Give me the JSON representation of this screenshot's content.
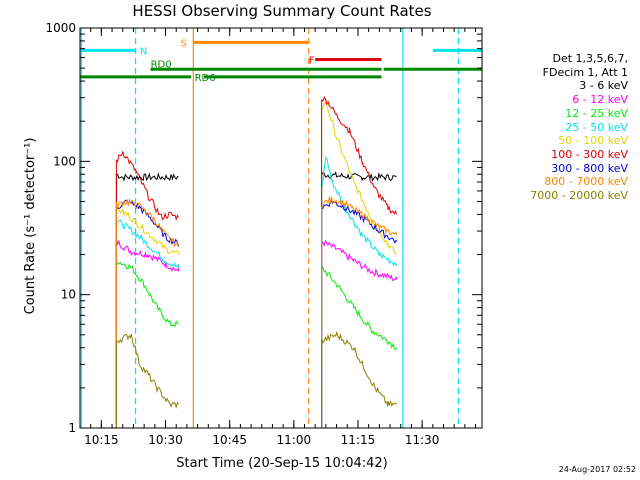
{
  "chart_data": {
    "type": "line",
    "title": "HESSI Observing Summary Count Rates",
    "xlabel": "Start Time (20-Sep-15 10:04:42)",
    "ylabel": "Count Rate (s⁻¹ detector⁻¹)",
    "ylim": [
      1,
      1000
    ],
    "yscale": "log",
    "xlim_minutes": [
      10.0,
      104.0
    ],
    "xticks": [
      {
        "label": "10:15",
        "min": 15
      },
      {
        "label": "10:30",
        "min": 30
      },
      {
        "label": "10:45",
        "min": 45
      },
      {
        "label": "11:00",
        "min": 60
      },
      {
        "label": "11:15",
        "min": 75
      },
      {
        "label": "11:30",
        "min": 90
      }
    ],
    "yticks": [
      {
        "label": "1",
        "value": 1
      },
      {
        "label": "10",
        "value": 10
      },
      {
        "label": "100",
        "value": 100
      },
      {
        "label": "1000",
        "value": 1000
      }
    ],
    "legend_header": [
      "Det 1,3,5,6,7,",
      "FDecim 1, Att 1"
    ],
    "legend_position": "right",
    "series": [
      {
        "name": "3 - 6 keV",
        "color": "#000000",
        "a": [
          [
            18.5,
            80
          ],
          [
            20,
            76
          ],
          [
            25,
            76
          ],
          [
            33,
            76
          ]
        ],
        "b": [
          [
            66.5,
            80
          ],
          [
            70,
            78
          ],
          [
            76,
            76
          ],
          [
            84,
            76
          ]
        ]
      },
      {
        "name": "6 - 12 keV",
        "color": "#ff00ff",
        "a": [
          [
            18.5,
            25
          ],
          [
            22,
            21
          ],
          [
            26,
            20
          ],
          [
            30,
            17
          ],
          [
            33,
            15
          ]
        ],
        "b": [
          [
            66.5,
            25
          ],
          [
            70,
            22
          ],
          [
            74,
            18
          ],
          [
            78,
            15
          ],
          [
            84,
            13
          ]
        ]
      },
      {
        "name": "12 - 25 keV",
        "color": "#00ee00",
        "a": [
          [
            18.5,
            18
          ],
          [
            22,
            16
          ],
          [
            25,
            12
          ],
          [
            28,
            8
          ],
          [
            31,
            6
          ],
          [
            33,
            6
          ]
        ],
        "b": [
          [
            66.5,
            16
          ],
          [
            70,
            12
          ],
          [
            74,
            8
          ],
          [
            78,
            5.5
          ],
          [
            82,
            4.5
          ],
          [
            84,
            4
          ]
        ]
      },
      {
        "name": "25 - 50 keV",
        "color": "#00e5ee",
        "a": [
          [
            18.5,
            36
          ],
          [
            21,
            32
          ],
          [
            24,
            27
          ],
          [
            27,
            22
          ],
          [
            30,
            18
          ],
          [
            33,
            16
          ]
        ],
        "b": [
          [
            66.5,
            60
          ],
          [
            67.5,
            110
          ],
          [
            69,
            70
          ],
          [
            72,
            45
          ],
          [
            76,
            28
          ],
          [
            80,
            20
          ],
          [
            84,
            17
          ]
        ]
      },
      {
        "name": "50 - 100 keV",
        "color": "#e5d400",
        "a": [
          [
            18.5,
            44
          ],
          [
            21,
            40
          ],
          [
            24,
            33
          ],
          [
            27,
            27
          ],
          [
            30,
            22
          ],
          [
            33,
            20
          ]
        ],
        "b": [
          [
            66.5,
            250
          ],
          [
            67.5,
            280
          ],
          [
            70,
            150
          ],
          [
            74,
            70
          ],
          [
            78,
            38
          ],
          [
            82,
            24
          ],
          [
            84,
            20
          ]
        ]
      },
      {
        "name": "100 - 300 keV",
        "color": "#e00000",
        "a": [
          [
            18.5,
            100
          ],
          [
            20,
            118
          ],
          [
            23,
            85
          ],
          [
            26,
            55
          ],
          [
            29,
            38
          ],
          [
            31,
            40
          ],
          [
            33,
            38
          ]
        ],
        "b": [
          [
            66.5,
            300
          ],
          [
            68,
            280
          ],
          [
            70,
            220
          ],
          [
            73,
            170
          ],
          [
            76,
            100
          ],
          [
            79,
            62
          ],
          [
            82,
            45
          ],
          [
            84,
            40
          ]
        ]
      },
      {
        "name": "300 - 800 keV",
        "color": "#0000dd",
        "a": [
          [
            18.5,
            45
          ],
          [
            21,
            50
          ],
          [
            24,
            45
          ],
          [
            27,
            36
          ],
          [
            30,
            27
          ],
          [
            33,
            24
          ]
        ],
        "b": [
          [
            66.5,
            45
          ],
          [
            69,
            50
          ],
          [
            72,
            45
          ],
          [
            76,
            38
          ],
          [
            80,
            30
          ],
          [
            84,
            25
          ]
        ]
      },
      {
        "name": "800 - 7000 keV",
        "color": "#ff8800",
        "a": [
          [
            18.5,
            47
          ],
          [
            21,
            50
          ],
          [
            24,
            46
          ],
          [
            27,
            38
          ],
          [
            30,
            28
          ],
          [
            33,
            23
          ]
        ],
        "b": [
          [
            66.5,
            48
          ],
          [
            69,
            52
          ],
          [
            72,
            48
          ],
          [
            76,
            40
          ],
          [
            80,
            32
          ],
          [
            84,
            28
          ]
        ]
      },
      {
        "name": "7000 - 20000 keV",
        "color": "#8b8000",
        "a": [
          [
            18.5,
            4.5
          ],
          [
            22,
            5
          ],
          [
            24,
            3
          ],
          [
            26,
            2.5
          ],
          [
            28,
            2
          ],
          [
            31,
            1.5
          ],
          [
            33,
            1.5
          ]
        ],
        "b": [
          [
            66.5,
            4.5
          ],
          [
            70,
            5
          ],
          [
            74,
            4
          ],
          [
            76,
            3
          ],
          [
            79,
            2
          ],
          [
            82,
            1.5
          ],
          [
            84,
            1.5
          ]
        ]
      }
    ],
    "flags": [
      {
        "label": "N",
        "color": "#00e5ee",
        "spans": [
          [
            10,
            23
          ],
          [
            92.5,
            104
          ]
        ],
        "level": 680
      },
      {
        "label": "S",
        "color": "#ff8800",
        "spans": [
          [
            36.5,
            63.5
          ]
        ],
        "level": 780
      },
      {
        "label": "F",
        "color": "#e00000",
        "spans": [
          [
            65,
            80.5
          ]
        ],
        "level": 580
      },
      {
        "label": "RD0",
        "color": "#008800",
        "spans": [
          [
            26.5,
            80.5
          ],
          [
            81,
            104
          ]
        ],
        "level": 490
      },
      {
        "label": "RD6",
        "color": "#008800",
        "spans": [
          [
            10,
            36
          ],
          [
            39,
            80.5
          ]
        ],
        "level": 430
      }
    ],
    "vlines": [
      {
        "min": 10.3,
        "color": "#00e5ee",
        "style": "solid"
      },
      {
        "min": 23,
        "color": "#00e5ee",
        "style": "dashed"
      },
      {
        "min": 36.5,
        "color": "#ff8800",
        "style": "solid"
      },
      {
        "min": 63.5,
        "color": "#ff8800",
        "style": "dashed"
      },
      {
        "min": 85.5,
        "color": "#00e5ee",
        "style": "solid"
      },
      {
        "min": 98.5,
        "color": "#00e5ee",
        "style": "dashed"
      }
    ]
  },
  "timestamp": "24-Aug-2017 02:52"
}
